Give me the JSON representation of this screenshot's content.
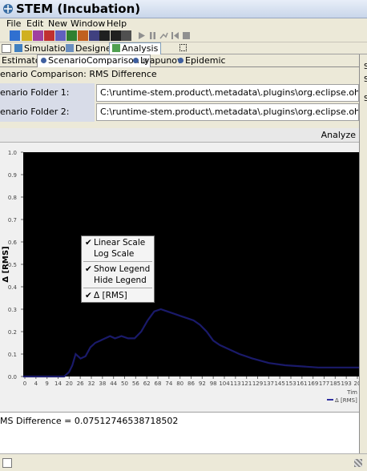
{
  "window": {
    "title": "STEM (Incubation)"
  },
  "menu": [
    "File",
    "Edit",
    "New",
    "Window",
    "Help"
  ],
  "perspectives": [
    {
      "label": "Simulation",
      "icon": "simulation-icon"
    },
    {
      "label": "Designer",
      "icon": "designer-icon"
    },
    {
      "label": "Analysis",
      "icon": "analysis-icon"
    }
  ],
  "view_tabs": [
    {
      "label": "Estimator"
    },
    {
      "label": "ScenarioComparison"
    },
    {
      "label": "Lyapunov"
    },
    {
      "label": "Epidemic"
    }
  ],
  "view_tab_close": "⊠",
  "heading": "enario Comparison: RMS Difference",
  "folders": [
    {
      "label": "enario Folder 1:",
      "value": "C:\\runtime-stem.product\\.metadata\\.plugins\\org.eclipse.ohf.stem.diseasem"
    },
    {
      "label": "enario Folder 2:",
      "value": "C:\\runtime-stem.product\\.metadata\\.plugins\\org.eclipse.ohf.stem.diseasem"
    }
  ],
  "analyze_label": "Analyze",
  "context_menu": [
    {
      "label": "Linear Scale",
      "checked": "✔"
    },
    {
      "label": "Log Scale",
      "checked": ""
    },
    {
      "label": "Show Legend",
      "checked": "✔"
    },
    {
      "label": "Hide Legend",
      "checked": ""
    },
    {
      "label": "Δ [RMS]",
      "checked": "✔"
    }
  ],
  "status": {
    "text": "MS Difference = 0.07512746538718502"
  },
  "right_pane_letters": [
    "S",
    "S",
    "S"
  ],
  "colors": {
    "plot_bg": "#000000",
    "series": "#1a1a6a",
    "title_gradient_top": "#e8eef8"
  },
  "chart_data": {
    "type": "line",
    "ylabel": "Δ [RMS]",
    "xlabel": "Tim",
    "ylim": [
      0,
      1.0
    ],
    "xlim": [
      0,
      205
    ],
    "y_ticks": [
      "0.0",
      "0.1",
      "0.2",
      "0.3",
      "0.4",
      "0.5",
      "0.6",
      "0.7",
      "0.8",
      "0.9",
      "1.0"
    ],
    "x_ticks": [
      "0",
      "4",
      "9",
      "14",
      "20",
      "26",
      "32",
      "38",
      "44",
      "50",
      "56",
      "62",
      "68",
      "74",
      "80",
      "86",
      "92",
      "98",
      "104",
      "113",
      "121",
      "129",
      "137",
      "145",
      "153",
      "161",
      "169",
      "177",
      "185",
      "193",
      "20"
    ],
    "legend": "Δ [RMS]",
    "grid": false,
    "series": [
      {
        "name": "Δ [RMS]",
        "x": [
          0,
          5,
          10,
          15,
          20,
          25,
          28,
          30,
          32,
          35,
          38,
          41,
          44,
          47,
          50,
          53,
          56,
          60,
          64,
          68,
          72,
          76,
          80,
          84,
          88,
          92,
          96,
          100,
          104,
          108,
          112,
          116,
          120,
          126,
          132,
          140,
          150,
          160,
          170,
          180,
          190,
          200,
          205
        ],
        "y": [
          0.0,
          0.0,
          0.0,
          0.0,
          0.0,
          0.0,
          0.02,
          0.05,
          0.1,
          0.08,
          0.09,
          0.13,
          0.15,
          0.16,
          0.17,
          0.18,
          0.17,
          0.18,
          0.17,
          0.17,
          0.2,
          0.25,
          0.29,
          0.3,
          0.29,
          0.28,
          0.27,
          0.26,
          0.25,
          0.23,
          0.2,
          0.16,
          0.14,
          0.12,
          0.1,
          0.08,
          0.06,
          0.05,
          0.045,
          0.04,
          0.04,
          0.04,
          0.04
        ]
      }
    ]
  }
}
